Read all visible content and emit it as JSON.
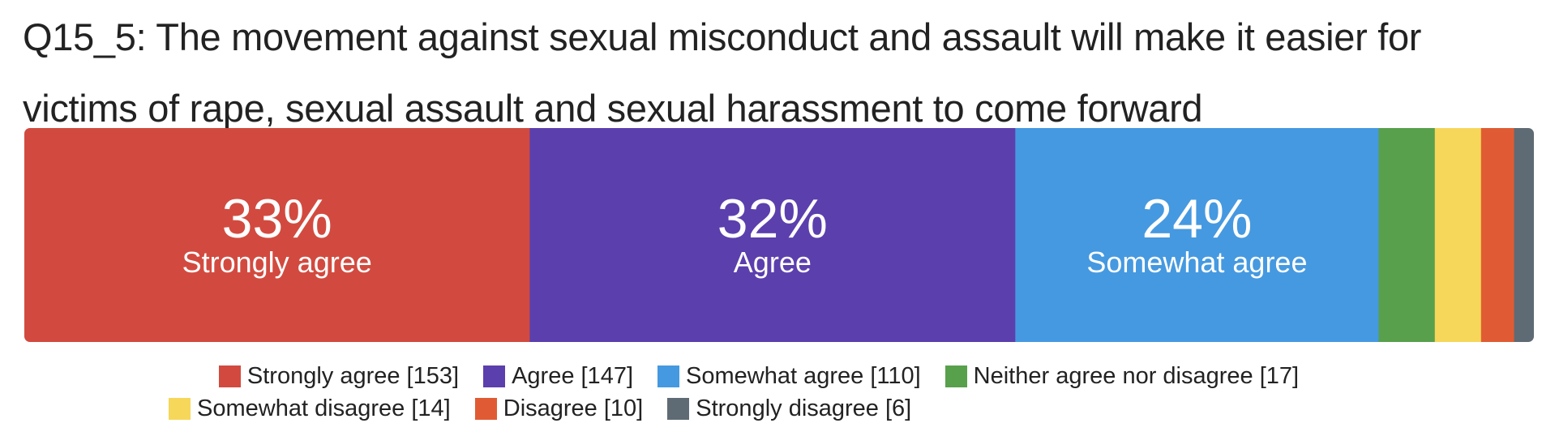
{
  "title": "Q15_5: The movement against sexual misconduct and assault will make it easier for victims of rape, sexual assault and sexual harassment to come forward",
  "chart_data": {
    "type": "bar",
    "orientation": "horizontal-stacked-100",
    "categories": [
      "Strongly agree",
      "Agree",
      "Somewhat agree",
      "Neither agree nor disagree",
      "Somewhat disagree",
      "Disagree",
      "Strongly disagree"
    ],
    "counts": [
      153,
      147,
      110,
      17,
      14,
      10,
      6
    ],
    "percent_labels": [
      "33%",
      "32%",
      "24%",
      "",
      "",
      "",
      ""
    ],
    "colors": [
      "#d24a3f",
      "#5b3fad",
      "#4599e0",
      "#58a04c",
      "#f6d75a",
      "#e05b33",
      "#5f6b74"
    ],
    "legend_labels": [
      "Strongly agree [153]",
      "Agree [147]",
      "Somewhat agree [110]",
      "Neither agree nor disagree [17]",
      "Somewhat disagree [14]",
      "Disagree [10]",
      "Strongly disagree [6]"
    ],
    "legend_position": "bottom"
  }
}
